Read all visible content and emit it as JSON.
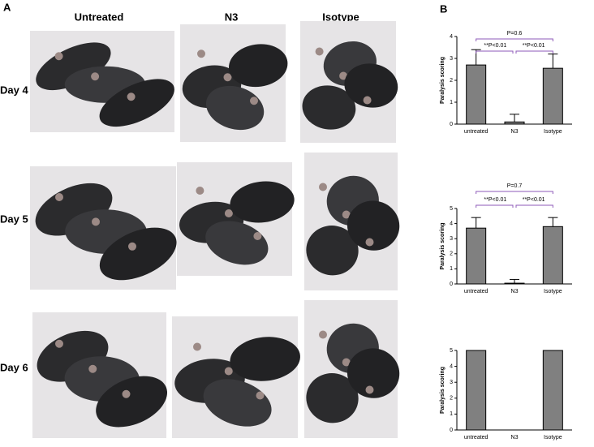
{
  "panel_a": {
    "label": "A",
    "columns": [
      "Untreated",
      "N3",
      "Isotype"
    ],
    "rows": [
      "Day 4",
      "Day 5",
      "Day 6"
    ]
  },
  "panel_b": {
    "label": "B"
  },
  "chart_data": [
    {
      "type": "bar",
      "ylabel": "Paralysis scoring",
      "categories": [
        "untreated",
        "N3",
        "Isotype"
      ],
      "values": [
        2.7,
        0.1,
        2.55
      ],
      "errors": [
        0.7,
        0.35,
        0.65
      ],
      "color": "#808080",
      "ylim": [
        0,
        4
      ],
      "yticks": [
        0,
        1,
        2,
        3,
        4
      ],
      "annotations": [
        "P=0.6",
        "**P<0.01",
        "**P<0.01"
      ]
    },
    {
      "type": "bar",
      "ylabel": "Paralysis scoring",
      "categories": [
        "untreated",
        "N3",
        "Isotype"
      ],
      "values": [
        3.7,
        0.05,
        3.8
      ],
      "errors": [
        0.7,
        0.25,
        0.6
      ],
      "color": "#808080",
      "ylim": [
        0,
        5
      ],
      "yticks": [
        0,
        1,
        2,
        3,
        4,
        5
      ],
      "annotations": [
        "P=0.7",
        "**P<0.01",
        "**P<0.01"
      ]
    },
    {
      "type": "bar",
      "ylabel": "Paralysis scoring",
      "categories": [
        "untreated",
        "N3",
        "Isotype"
      ],
      "values": [
        5,
        0,
        5
      ],
      "color": "#808080",
      "ylim": [
        0,
        5
      ],
      "yticks": [
        0,
        1,
        2,
        3,
        4,
        5
      ]
    }
  ]
}
